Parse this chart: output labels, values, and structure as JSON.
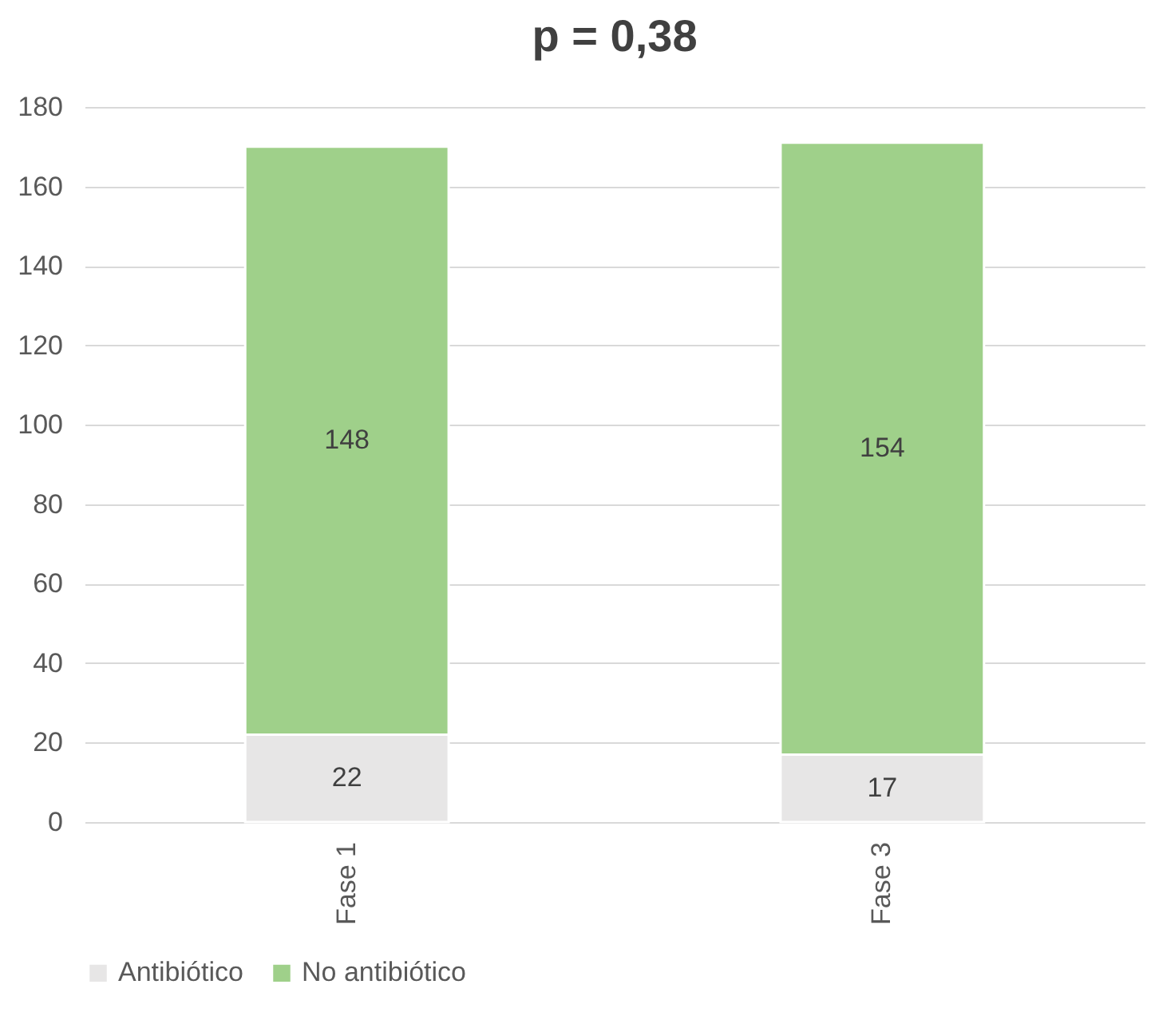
{
  "chart_data": {
    "type": "bar",
    "title": "p = 0,38",
    "categories": [
      "Fase 1",
      "Fase 3"
    ],
    "stacked": true,
    "series": [
      {
        "name": "Antibiótico",
        "color": "#e7e6e6",
        "values": [
          22,
          17
        ]
      },
      {
        "name": "No antibiótico",
        "color": "#9fd08a",
        "values": [
          148,
          154
        ]
      }
    ],
    "ylim": [
      0,
      180
    ],
    "yticks": [
      0,
      20,
      40,
      60,
      80,
      100,
      120,
      140,
      160,
      180
    ],
    "grid": "y",
    "legend": "bottom",
    "data_labels": true
  }
}
